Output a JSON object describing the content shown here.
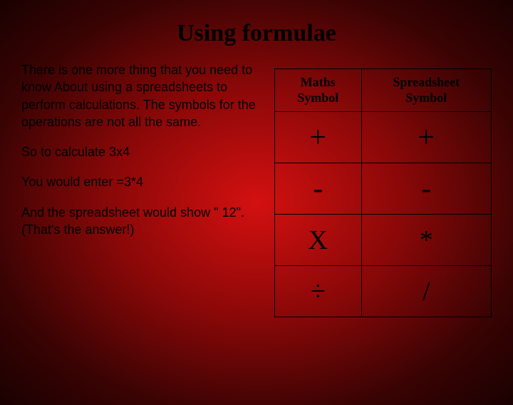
{
  "title": "Using formulae",
  "paragraphs": {
    "p1": "There is one more thing that you need to know About using a spreadsheets to perform calculations. The symbols for the operations are not all the same.",
    "p2": "So to calculate 3x4",
    "p3": "You would enter =3*4",
    "p4": "And the spreadsheet would show \" 12\". (That's the answer!)"
  },
  "table": {
    "headers": {
      "col1_line1": "Maths",
      "col1_line2": "Symbol",
      "col2_line1": "Spreadsheet",
      "col2_line2": "Symbol"
    },
    "rows": [
      {
        "maths": "+",
        "spreadsheet": "+"
      },
      {
        "maths": "-",
        "spreadsheet": "-"
      },
      {
        "maths": "X",
        "spreadsheet": "*"
      },
      {
        "maths": "÷",
        "spreadsheet": "/"
      }
    ],
    "header_fontsize": 18,
    "cell_fontsize": 38,
    "border_color": "#000000",
    "text_color": "#000000"
  },
  "colors": {
    "background_center": "#d41010",
    "background_mid": "#8b0808",
    "background_outer": "#1a0101",
    "title_color": "#000000",
    "body_text_color": "#000000"
  },
  "fonts": {
    "title_family": "Times New Roman",
    "title_size": 34,
    "body_family": "Comic Sans MS",
    "body_size": 18,
    "table_family": "Times New Roman"
  }
}
